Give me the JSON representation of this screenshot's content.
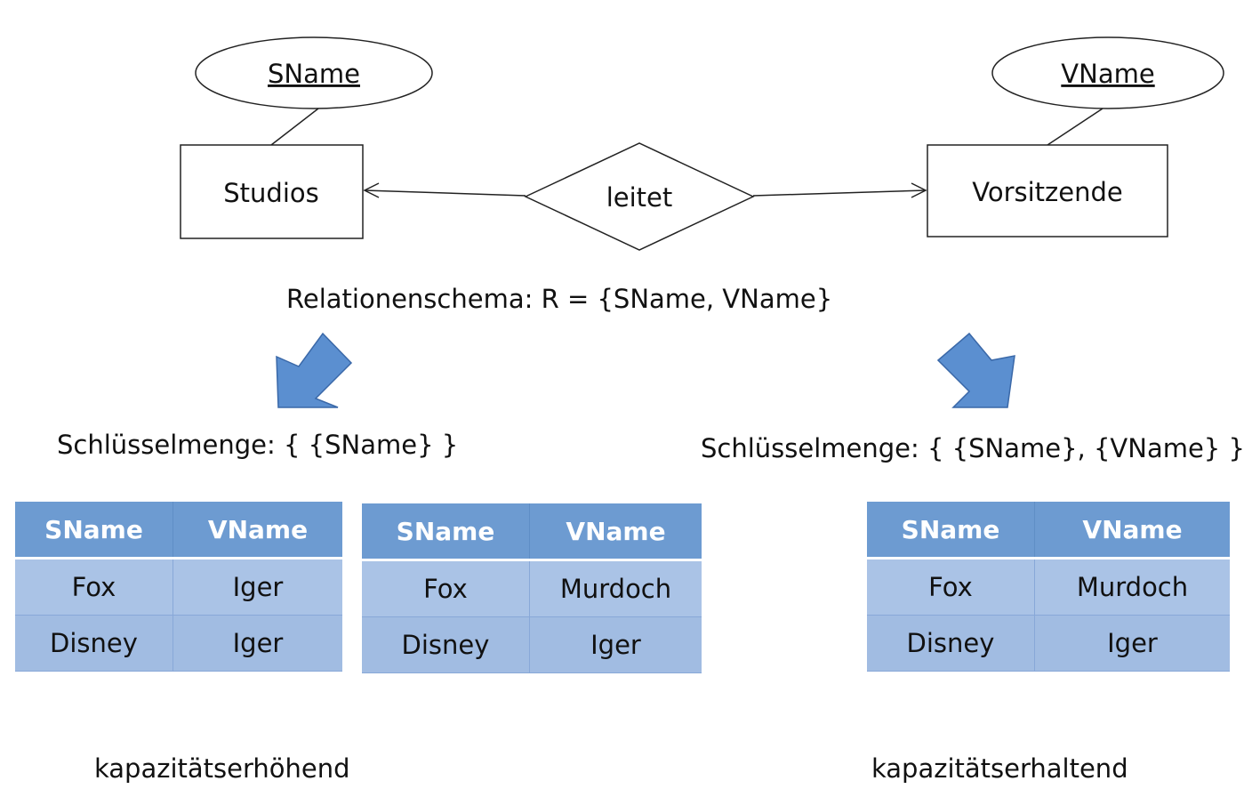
{
  "er": {
    "entity_left": {
      "name": "Studios",
      "key_attribute": "SName"
    },
    "entity_right": {
      "name": "Vorsitzende",
      "key_attribute": "VName"
    },
    "relationship": "leitet"
  },
  "schema_text": "Relationenschema: R = {SName, VName}",
  "left": {
    "keyset": "Schlüsselmenge: { {SName} }",
    "tables": [
      {
        "headers": [
          "SName",
          "VName"
        ],
        "rows": [
          [
            "Fox",
            "Iger"
          ],
          [
            "Disney",
            "Iger"
          ]
        ]
      },
      {
        "headers": [
          "SName",
          "VName"
        ],
        "rows": [
          [
            "Fox",
            "Murdoch"
          ],
          [
            "Disney",
            "Iger"
          ]
        ]
      }
    ],
    "caption": "kapazitätserhöhend"
  },
  "right": {
    "keyset": "Schlüsselmenge: { {SName}, {VName} }",
    "table": {
      "headers": [
        "SName",
        "VName"
      ],
      "rows": [
        [
          "Fox",
          "Murdoch"
        ],
        [
          "Disney",
          "Iger"
        ]
      ]
    },
    "caption": "kapazitätserhaltend"
  },
  "colors": {
    "arrow_fill": "#5b8fd0",
    "arrow_stroke": "#3a68a8",
    "table_header": "#6d9bd1",
    "table_cell": "#a9c2e5"
  }
}
